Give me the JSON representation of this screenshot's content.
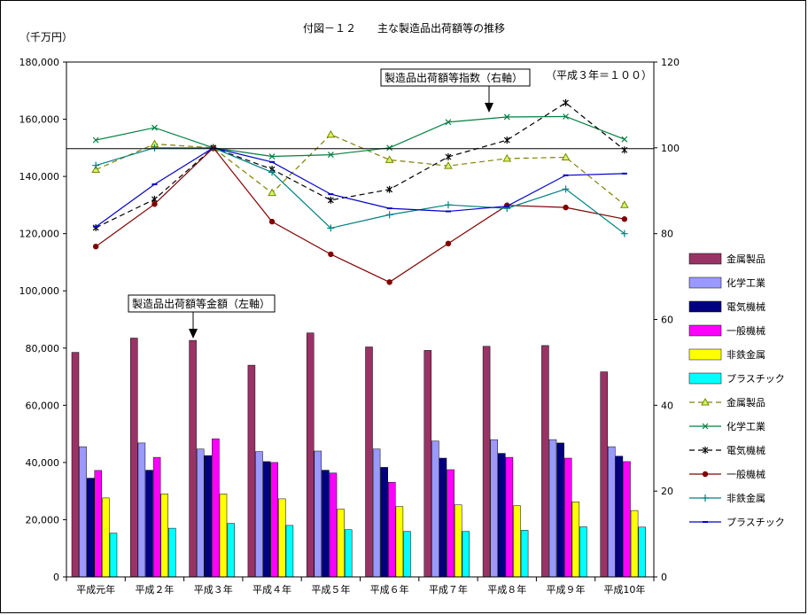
{
  "chart_data": {
    "type": "bar",
    "title": "付図－１２　　主な製造品出荷額等の推移",
    "left_axis": {
      "unit_label": "（千万円）",
      "ylim": [
        0,
        180000
      ],
      "ticks": [
        "0",
        "20,000",
        "40,000",
        "60,000",
        "80,000",
        "100,000",
        "120,000",
        "140,000",
        "160,000",
        "180,000"
      ]
    },
    "right_axis": {
      "ylim": [
        0,
        120
      ],
      "ticks": [
        "0",
        "20",
        "40",
        "60",
        "80",
        "100",
        "120"
      ]
    },
    "categories": [
      "平成元年",
      "平成２年",
      "平成３年",
      "平成４年",
      "平成５年",
      "平成６年",
      "平成７年",
      "平成８年",
      "平成９年",
      "平成10年"
    ],
    "bar_series": [
      {
        "name": "金属製品",
        "color": "#993366",
        "values": [
          78500,
          83500,
          82700,
          74000,
          85300,
          80400,
          79200,
          80600,
          80900,
          71700
        ]
      },
      {
        "name": "化学工業",
        "color": "#9999ff",
        "values": [
          45500,
          46800,
          44700,
          43800,
          44000,
          44700,
          47500,
          48000,
          48000,
          45500
        ]
      },
      {
        "name": "電気機械",
        "color": "#000080",
        "values": [
          34500,
          37300,
          42400,
          40300,
          37300,
          38300,
          41500,
          43200,
          46800,
          42200
        ]
      },
      {
        "name": "一般機械",
        "color": "#ff00ff",
        "values": [
          37200,
          41800,
          48300,
          40000,
          36300,
          33100,
          37500,
          41800,
          41500,
          40300
        ]
      },
      {
        "name": "非鉄金属",
        "color": "#ffff00",
        "values": [
          27600,
          29000,
          29000,
          27300,
          23700,
          24600,
          25200,
          24900,
          26200,
          23200
        ]
      },
      {
        "name": "プラスチック",
        "color": "#00ffff",
        "values": [
          15300,
          17000,
          18700,
          18000,
          16500,
          15900,
          15900,
          16300,
          17500,
          17400
        ]
      }
    ],
    "line_series": [
      {
        "name": "金属製品",
        "color": "#808000",
        "dash": "6,4",
        "marker": "triangle",
        "values": [
          94.9,
          100.9,
          100,
          89.5,
          103.1,
          97.2,
          95.8,
          97.5,
          97.8,
          86.7
        ]
      },
      {
        "name": "化学工業",
        "color": "#008040",
        "dash": "",
        "marker": "x",
        "values": [
          101.8,
          104.7,
          100,
          98.0,
          98.4,
          100.0,
          106.0,
          107.2,
          107.3,
          102.0
        ]
      },
      {
        "name": "電気機械",
        "color": "#000000",
        "dash": "6,4",
        "marker": "star",
        "values": [
          81.4,
          88.0,
          100,
          95.0,
          87.8,
          90.3,
          97.9,
          101.8,
          110.5,
          99.5
        ]
      },
      {
        "name": "一般機械",
        "color": "#800000",
        "dash": "",
        "marker": "dot",
        "values": [
          77.0,
          86.9,
          100,
          82.8,
          75.2,
          68.7,
          77.7,
          86.6,
          86.1,
          83.4
        ]
      },
      {
        "name": "非鉄金属",
        "color": "#008080",
        "dash": "",
        "marker": "plus",
        "values": [
          95.9,
          100.0,
          100,
          94.3,
          81.3,
          84.4,
          86.7,
          85.9,
          90.4,
          80.0
        ]
      },
      {
        "name": "プラスチック",
        "color": "#0000cc",
        "dash": "",
        "marker": "dash",
        "values": [
          81.6,
          91.5,
          100,
          96.7,
          89.2,
          85.9,
          85.2,
          86.4,
          93.6,
          94.0
        ]
      }
    ],
    "reference_line": 100,
    "annotations": {
      "right_axis_callout": "製造品出荷額等指数（右軸）",
      "right_axis_note": "（平成３年＝１００）",
      "left_axis_callout": "製造品出荷額等金額（左軸）"
    },
    "legend_position": "right",
    "grid": false
  }
}
